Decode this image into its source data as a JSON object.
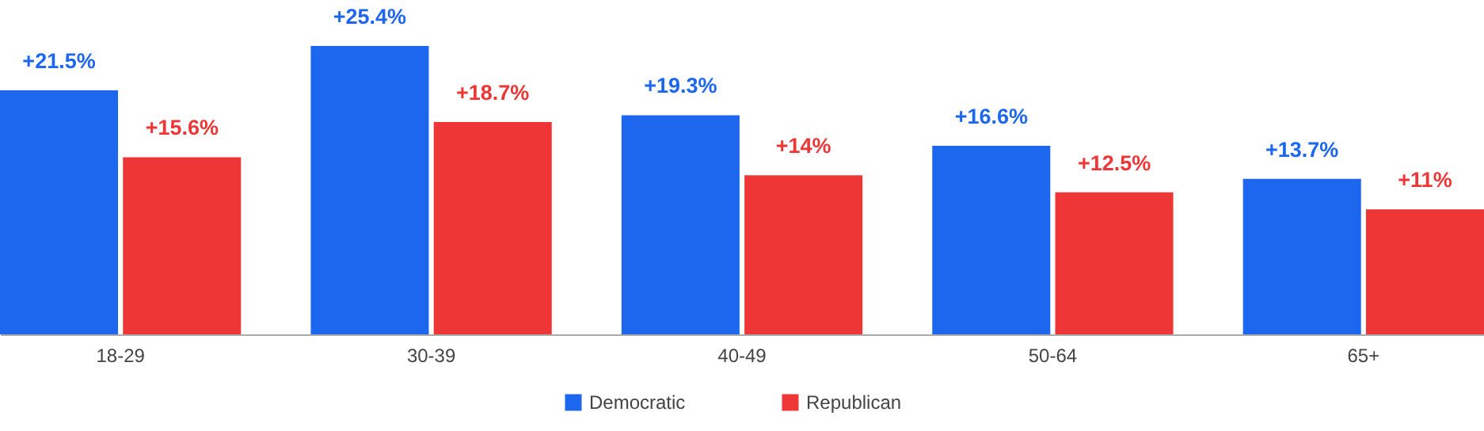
{
  "chart_data": {
    "type": "bar",
    "categories": [
      "18-29",
      "30-39",
      "40-49",
      "50-64",
      "65+"
    ],
    "series": [
      {
        "name": "Democratic",
        "color": "#1d67ee",
        "values": [
          21.5,
          25.4,
          19.3,
          16.6,
          13.7
        ],
        "value_labels": [
          "+21.5%",
          "+25.4%",
          "+19.3%",
          "+16.6%",
          "+13.7%"
        ]
      },
      {
        "name": "Republican",
        "color": "#ee3636",
        "values": [
          15.6,
          18.7,
          14,
          12.5,
          11
        ],
        "value_labels": [
          "+15.6%",
          "+18.7%",
          "+14%",
          "+12.5%",
          "+11%"
        ]
      }
    ],
    "legend": "bottom",
    "grid": false
  }
}
